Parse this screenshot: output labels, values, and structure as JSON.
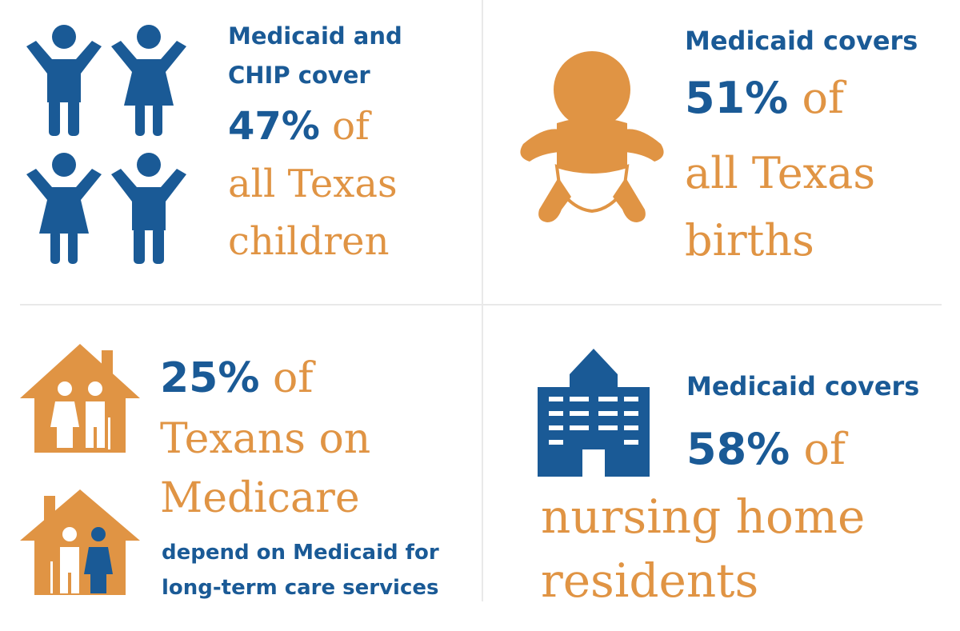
{
  "colors": {
    "blue": "#1a5a96",
    "orange": "#e09444",
    "divider": "#e9e9e9"
  },
  "children": {
    "intro_line1": "Medicaid and",
    "intro_line2": "CHIP cover",
    "percent": "47%",
    "of": "of",
    "line1": "all Texas",
    "line2": "children",
    "icons": [
      "boy-icon",
      "girl-icon",
      "girl-icon",
      "boy-icon"
    ]
  },
  "births": {
    "intro": "Medicaid covers",
    "percent": "51%",
    "of": "of",
    "line1": "all Texas",
    "line2": "births",
    "icons": [
      "baby-icon"
    ]
  },
  "medicare": {
    "percent": "25%",
    "of": "of",
    "line1": "Texans on",
    "line2": "Medicare",
    "tail1": "depend on Medicaid for",
    "tail2": "long-term care services",
    "icons": [
      "elderly-couple-house-icon",
      "elderly-couple-house-icon"
    ]
  },
  "nursing": {
    "intro": "Medicaid covers",
    "percent": "58%",
    "of": "of",
    "line1": "nursing home",
    "line2": "residents",
    "icons": [
      "building-icon"
    ]
  }
}
